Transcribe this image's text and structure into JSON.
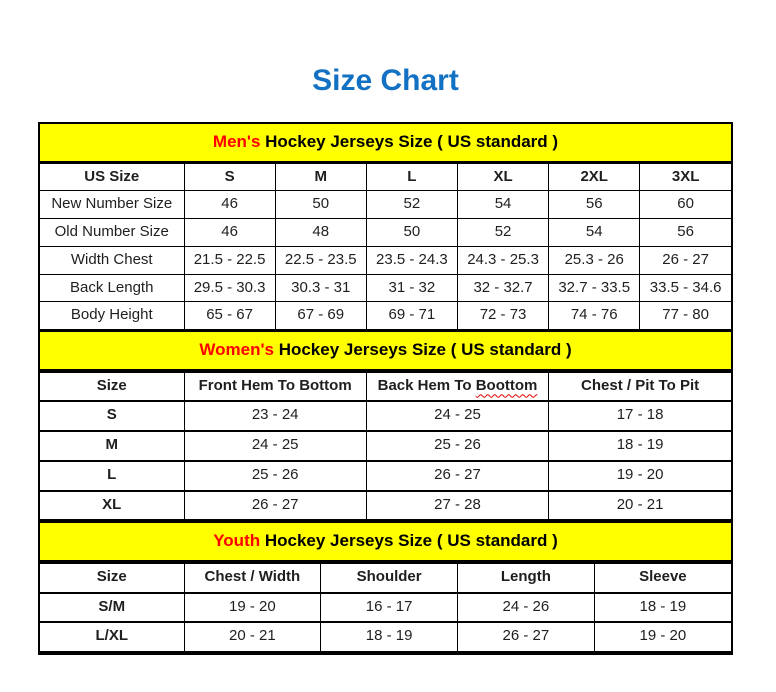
{
  "page_title": "Size Chart",
  "colors": {
    "title_blue": "#1371c3",
    "band_yellow": "#ffff00",
    "accent_red": "#ff0000",
    "border_black": "#000000"
  },
  "sections": [
    {
      "id": "mens",
      "band_highlight": "Men's",
      "band_rest": " Hockey Jerseys Size ( US standard )",
      "columns": [
        "US Size",
        "S",
        "M",
        "L",
        "XL",
        "2XL",
        "3XL"
      ],
      "row_label_bold": false,
      "rows": [
        {
          "label": "New Number Size",
          "values": [
            "46",
            "50",
            "52",
            "54",
            "56",
            "60"
          ]
        },
        {
          "label": "Old Number Size",
          "values": [
            "46",
            "48",
            "50",
            "52",
            "54",
            "56"
          ]
        },
        {
          "label": "Width Chest",
          "values": [
            "21.5 - 22.5",
            "22.5 - 23.5",
            "23.5 - 24.3",
            "24.3 - 25.3",
            "25.3 - 26",
            "26 - 27"
          ]
        },
        {
          "label": "Back Length",
          "values": [
            "29.5 - 30.3",
            "30.3 - 31",
            "31 - 32",
            "32 - 32.7",
            "32.7 - 33.5",
            "33.5 - 34.6"
          ]
        },
        {
          "label": "Body Height",
          "values": [
            "65 - 67",
            "67 - 69",
            "69 - 71",
            "72 - 73",
            "74 - 76",
            "77 - 80"
          ]
        }
      ]
    },
    {
      "id": "womens",
      "band_highlight": "Women's",
      "band_rest": " Hockey Jerseys Size ( US standard )",
      "columns": [
        "Size",
        "Front Hem To Bottom",
        "Back Hem To Boottom",
        "Chest / Pit To Pit"
      ],
      "misspelling": {
        "column_index": 2,
        "prefix": "Back Hem To ",
        "word": "Boottom"
      },
      "row_label_bold": true,
      "rows": [
        {
          "label": "S",
          "values": [
            "23 - 24",
            "24 - 25",
            "17 - 18"
          ]
        },
        {
          "label": "M",
          "values": [
            "24 - 25",
            "25 - 26",
            "18 - 19"
          ]
        },
        {
          "label": "L",
          "values": [
            "25 - 26",
            "26 - 27",
            "19 - 20"
          ]
        },
        {
          "label": "XL",
          "values": [
            "26 - 27",
            "27 - 28",
            "20 - 21"
          ]
        }
      ]
    },
    {
      "id": "youth",
      "band_highlight": "Youth",
      "band_rest": " Hockey Jerseys Size ( US standard )",
      "columns": [
        "Size",
        "Chest / Width",
        "Shoulder",
        "Length",
        "Sleeve"
      ],
      "row_label_bold": true,
      "rows": [
        {
          "label": "S/M",
          "values": [
            "19 - 20",
            "16 - 17",
            "24 - 26",
            "18 - 19"
          ]
        },
        {
          "label": "L/XL",
          "values": [
            "20 - 21",
            "18 - 19",
            "26 - 27",
            "19 - 20"
          ]
        }
      ]
    }
  ]
}
